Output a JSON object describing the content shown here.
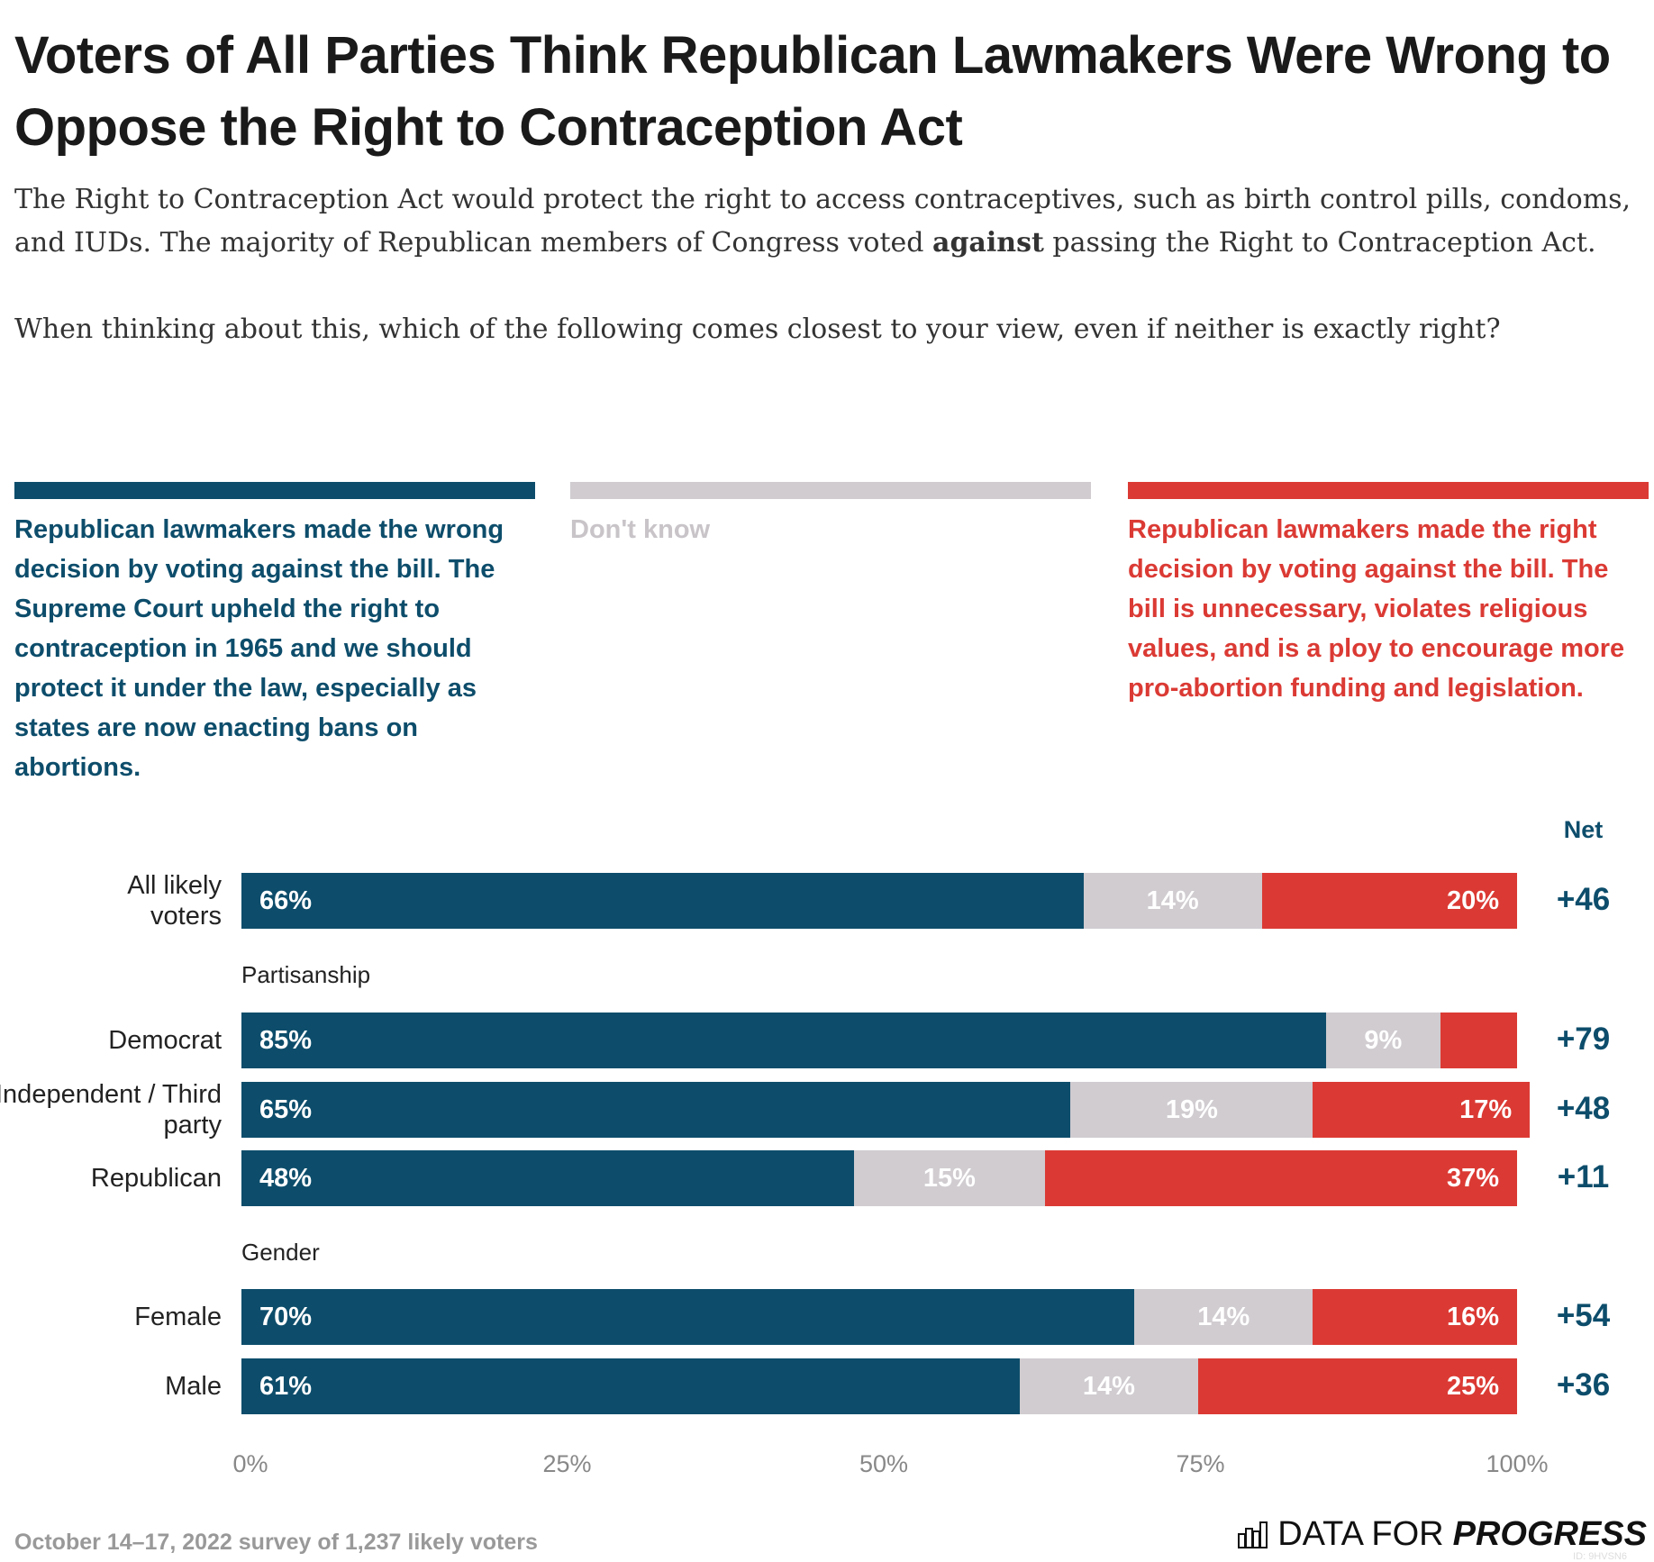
{
  "title": "Voters of All Parties Think Republican Lawmakers Were Wrong to Oppose the Right to Contraception Act",
  "subtitle": {
    "p1_before": "The Right to Contraception Act would protect the right to access contraceptives, such as birth control pills, condoms, and IUDs. The majority of Republican members of Congress voted ",
    "p1_bold": "against",
    "p1_after": " passing the Right to Contraception Act.",
    "p2": "When thinking about this, which of the following comes closest to your view, even if neither is exactly right?"
  },
  "colors": {
    "wrong": "#0d4d6b",
    "dontknow": "#d0ccd0",
    "right": "#db3a34"
  },
  "chart_data": {
    "type": "bar",
    "orientation": "horizontal",
    "stacked": true,
    "xlim": [
      0,
      100
    ],
    "legend": [
      {
        "key": "wrong",
        "label": "Republican lawmakers made the wrong decision by voting against the bill. The Supreme Court upheld the right to contraception in 1965 and we should protect it under the law, especially as states are now enacting bans on abortions."
      },
      {
        "key": "dontknow",
        "label": "Don't know"
      },
      {
        "key": "right",
        "label": "Republican lawmakers made the right decision by voting against the bill. The bill is unnecessary, violates religious values, and is a ploy to encourage more pro-abortion funding and legislation."
      }
    ],
    "net_header": "Net",
    "ticks": [
      "0%",
      "25%",
      "50%",
      "75%",
      "100%"
    ],
    "sections": [
      "Partisanship",
      "Gender"
    ],
    "rows": [
      {
        "label": "All likely voters",
        "section": "",
        "wrong": 66,
        "dontknow": 14,
        "right": 20,
        "labels": [
          "66%",
          "14%",
          "20%"
        ],
        "net": "+46"
      },
      {
        "label": "Democrat",
        "section": "Partisanship",
        "wrong": 85,
        "dontknow": 9,
        "right": 6,
        "labels": [
          "85%",
          "9%",
          ""
        ],
        "net": "+79"
      },
      {
        "label": "Independent / Third party",
        "section": "Partisanship",
        "wrong": 65,
        "dontknow": 19,
        "right": 17,
        "labels": [
          "65%",
          "19%",
          "17%"
        ],
        "net": "+48"
      },
      {
        "label": "Republican",
        "section": "Partisanship",
        "wrong": 48,
        "dontknow": 15,
        "right": 37,
        "labels": [
          "48%",
          "15%",
          "37%"
        ],
        "net": "+11"
      },
      {
        "label": "Female",
        "section": "Gender",
        "wrong": 70,
        "dontknow": 14,
        "right": 16,
        "labels": [
          "70%",
          "14%",
          "16%"
        ],
        "net": "+54"
      },
      {
        "label": "Male",
        "section": "Gender",
        "wrong": 61,
        "dontknow": 14,
        "right": 25,
        "labels": [
          "61%",
          "14%",
          "25%"
        ],
        "net": "+36"
      }
    ]
  },
  "footer": "October 14–17, 2022 survey of 1,237 likely voters",
  "logo": {
    "text": "DATA FOR",
    "bold": "PROGRESS",
    "id": "ID: 9HVSN6"
  }
}
